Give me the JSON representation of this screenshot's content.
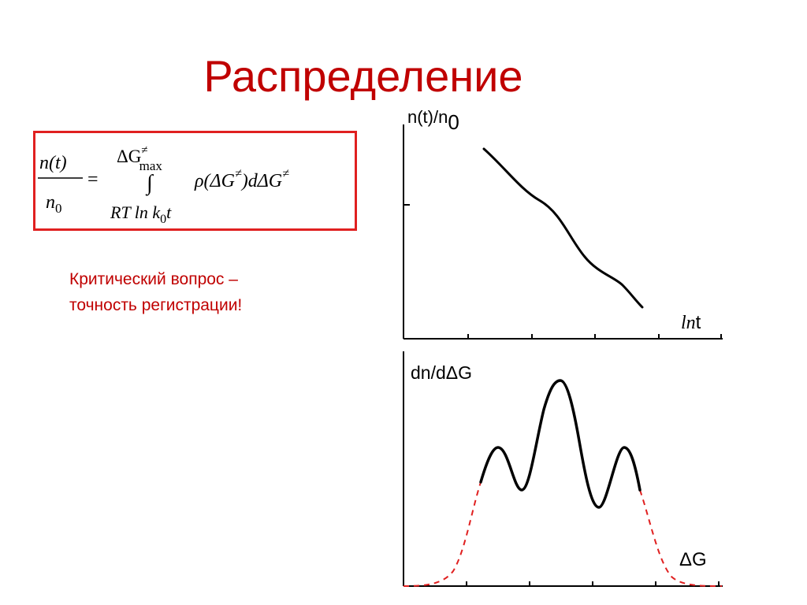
{
  "slide": {
    "title": "Распределение",
    "note_lines": [
      "Критический вопрос –",
      "точность регистрации!"
    ],
    "accent_color": "#c00000",
    "box_border_color": "#e02020"
  },
  "formula": {
    "lhs_numerator": "n(t)",
    "lhs_denominator_base": "n",
    "lhs_denominator_sub": "0",
    "equals": "=",
    "upper_limit_base": "ΔG",
    "upper_limit_sup": "≠",
    "upper_limit_sub": "max",
    "integral": "∫",
    "lower_limit": "RT ln k",
    "lower_limit_sub": "0",
    "lower_limit_end": "t",
    "integrand_start": "ρ(ΔG",
    "integrand_sup": "≠",
    "integrand_mid": ")dΔG",
    "integrand_sup2": "≠"
  },
  "top_plot": {
    "ylabel": "n(t)/n",
    "ylabel_sub": "0",
    "xlabel_italic": "ln",
    "xlabel_rest": "t"
  },
  "bottom_plot": {
    "ylabel": "dn/dΔG",
    "xlabel": "ΔG",
    "tail_color": "#e02020"
  }
}
